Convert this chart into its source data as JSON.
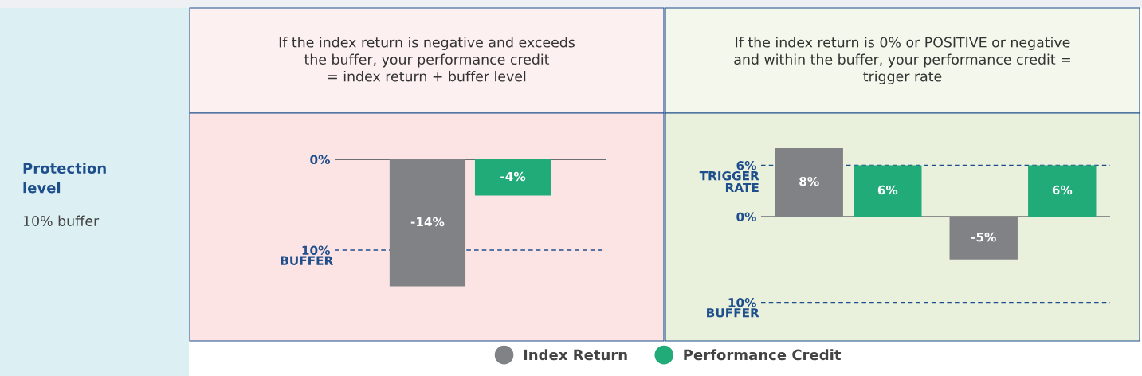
{
  "chart_data": [
    {
      "type": "bar",
      "title": "If the index return is negative and exceeds\nthe buffer, your performance credit\n= index return + buffer level",
      "annotations": [
        "Protection\nlevel",
        "10% buffer"
      ],
      "categories": [
        null
      ],
      "series": [
        {
          "name": "Index Return",
          "color": "#808285",
          "values": [
            -14
          ],
          "value_labels": [
            "-14%"
          ]
        },
        {
          "name": "Performance Credit",
          "color": "#21ab78",
          "values": [
            -4
          ],
          "value_labels": [
            "-4%"
          ]
        }
      ],
      "ylim": [
        -20,
        5
      ],
      "yticks": [
        {
          "value": 0,
          "label": "0%"
        },
        {
          "value": -10,
          "label": "10%"
        }
      ],
      "tick_labels": "y",
      "legend": "bottom",
      "ref_lines": [
        {
          "axis": "y",
          "value": 0,
          "label": null,
          "color": "#6d6e71",
          "line_style": "solid"
        },
        {
          "axis": "y",
          "value": -10,
          "label": "BUFFER",
          "color": "#1f4e8c",
          "line_style": "dashed"
        }
      ]
    },
    {
      "type": "bar",
      "title": "If the index return is 0% or POSITIVE or negative\nand within the buffer, your performance credit =\ntrigger rate",
      "categories": [
        null,
        null
      ],
      "series": [
        {
          "color": "#808285",
          "values": [
            8,
            -5
          ],
          "value_labels": [
            "8%",
            "-5%"
          ]
        },
        {
          "color": "#21ab78",
          "values": [
            6,
            6
          ],
          "value_labels": [
            "6%",
            "6%"
          ]
        }
      ],
      "ylim": [
        -14.5,
        12
      ],
      "yticks": [
        {
          "value": 6,
          "label": "6%"
        },
        {
          "value": 0,
          "label": "0%"
        },
        {
          "value": -10,
          "label": "10%"
        }
      ],
      "tick_labels": "y",
      "ref_lines": [
        {
          "axis": "y",
          "value": 6,
          "label": "TRIGGER\nRATE",
          "color": "#1f4e8c",
          "line_style": "dashed"
        },
        {
          "axis": "y",
          "value": 0,
          "label": null,
          "color": "#6d6e71",
          "line_style": "solid"
        },
        {
          "axis": "y",
          "value": -10,
          "label": "BUFFER",
          "color": "#1f4e8c",
          "line_style": "dashed"
        }
      ]
    }
  ]
}
